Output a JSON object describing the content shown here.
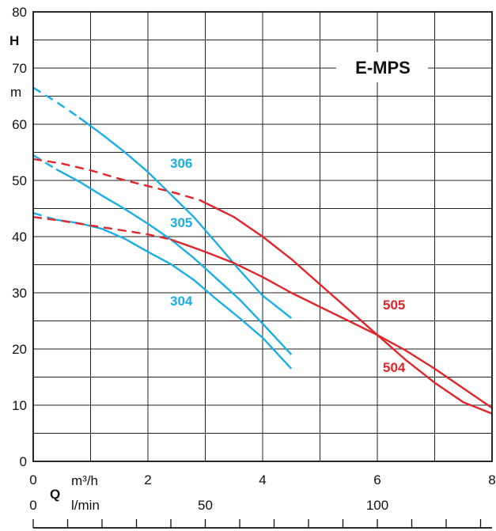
{
  "chart_data": {
    "type": "line",
    "title": "E-MPS",
    "ylabel_symbol": "H",
    "ylabel_unit": "m",
    "xlabel_symbol": "Q",
    "x_unit_primary": "m³/h",
    "x_unit_secondary": "l/min",
    "xlim": [
      0,
      8
    ],
    "ylim": [
      0,
      80
    ],
    "grid": true,
    "y_ticks": [
      "0",
      "10",
      "20",
      "30",
      "40",
      "50",
      "60",
      "70",
      "80"
    ],
    "y_tick_values": [
      0,
      10,
      20,
      30,
      40,
      50,
      60,
      70,
      80
    ],
    "x_ticks": [
      "0",
      "2",
      "4",
      "6",
      "8"
    ],
    "x_tick_values": [
      0,
      2,
      4,
      6,
      8
    ],
    "x2_ticks": [
      "0",
      "50",
      "100"
    ],
    "x2_tick_values_lpm": [
      0,
      50,
      100
    ],
    "x2_minor_tick_values_lpm": [
      10,
      20,
      30,
      40,
      60,
      70,
      80,
      90,
      110,
      120,
      130
    ],
    "series": [
      {
        "name": "306",
        "color": "#1aaee5",
        "dashed_points": [
          [
            0,
            66.5
          ],
          [
            0.4,
            64
          ],
          [
            0.8,
            61.2
          ]
        ],
        "points": [
          [
            0.8,
            61.2
          ],
          [
            1.2,
            58.2
          ],
          [
            1.6,
            55
          ],
          [
            2.0,
            51.5
          ],
          [
            2.4,
            47.5
          ],
          [
            2.8,
            43.5
          ],
          [
            3.2,
            38.8
          ],
          [
            3.6,
            34
          ],
          [
            4.0,
            29.5
          ],
          [
            4.5,
            25.5
          ]
        ]
      },
      {
        "name": "305",
        "color": "#1aaee5",
        "dashed_points": [
          [
            0,
            54.5
          ],
          [
            0.4,
            52
          ]
        ],
        "points": [
          [
            0.4,
            52
          ],
          [
            0.8,
            49.8
          ],
          [
            1.2,
            47.3
          ],
          [
            1.6,
            44.9
          ],
          [
            2.0,
            42.3
          ],
          [
            2.4,
            39.5
          ],
          [
            2.8,
            36.2
          ],
          [
            3.2,
            32.5
          ],
          [
            3.6,
            28.8
          ],
          [
            4.0,
            24.5
          ],
          [
            4.5,
            19
          ]
        ]
      },
      {
        "name": "304",
        "color": "#1aaee5",
        "dashed_points": [
          [
            0,
            44.2
          ],
          [
            0.4,
            43
          ]
        ],
        "points": [
          [
            0.4,
            43
          ],
          [
            0.8,
            42.4
          ],
          [
            1.2,
            41.4
          ],
          [
            1.6,
            39.6
          ],
          [
            2.0,
            37.3
          ],
          [
            2.4,
            35.1
          ],
          [
            2.8,
            32.3
          ],
          [
            3.2,
            28.8
          ],
          [
            3.6,
            25.5
          ],
          [
            4.0,
            22
          ],
          [
            4.5,
            16.5
          ]
        ]
      },
      {
        "name": "505",
        "color": "#e0252b",
        "dashed_points": [
          [
            0,
            53.8
          ],
          [
            0.5,
            53
          ],
          [
            1.0,
            51.8
          ],
          [
            1.5,
            50.3
          ],
          [
            2.0,
            49
          ],
          [
            2.5,
            47.7
          ],
          [
            2.9,
            46.5
          ]
        ],
        "points": [
          [
            2.9,
            46.5
          ],
          [
            3.5,
            43.5
          ],
          [
            4.0,
            40
          ],
          [
            4.5,
            36
          ],
          [
            5.0,
            31.5
          ],
          [
            5.5,
            27
          ],
          [
            6.0,
            22.5
          ],
          [
            6.5,
            18
          ],
          [
            7.0,
            14
          ],
          [
            7.5,
            10.5
          ],
          [
            8.0,
            8.5
          ]
        ]
      },
      {
        "name": "504",
        "color": "#e0252b",
        "dashed_points": [
          [
            0,
            43.5
          ],
          [
            0.5,
            42.8
          ],
          [
            1.0,
            42
          ],
          [
            1.5,
            41.2
          ],
          [
            2.0,
            40.4
          ],
          [
            2.4,
            39.5
          ]
        ],
        "points": [
          [
            2.4,
            39.5
          ],
          [
            3.0,
            37.3
          ],
          [
            3.5,
            35.3
          ],
          [
            4.0,
            32.8
          ],
          [
            4.5,
            30
          ],
          [
            5.0,
            27.5
          ],
          [
            5.5,
            25
          ],
          [
            6.0,
            22.5
          ],
          [
            6.5,
            19.7
          ],
          [
            7.0,
            16.5
          ],
          [
            7.5,
            13
          ],
          [
            8.0,
            9.5
          ]
        ]
      }
    ]
  }
}
